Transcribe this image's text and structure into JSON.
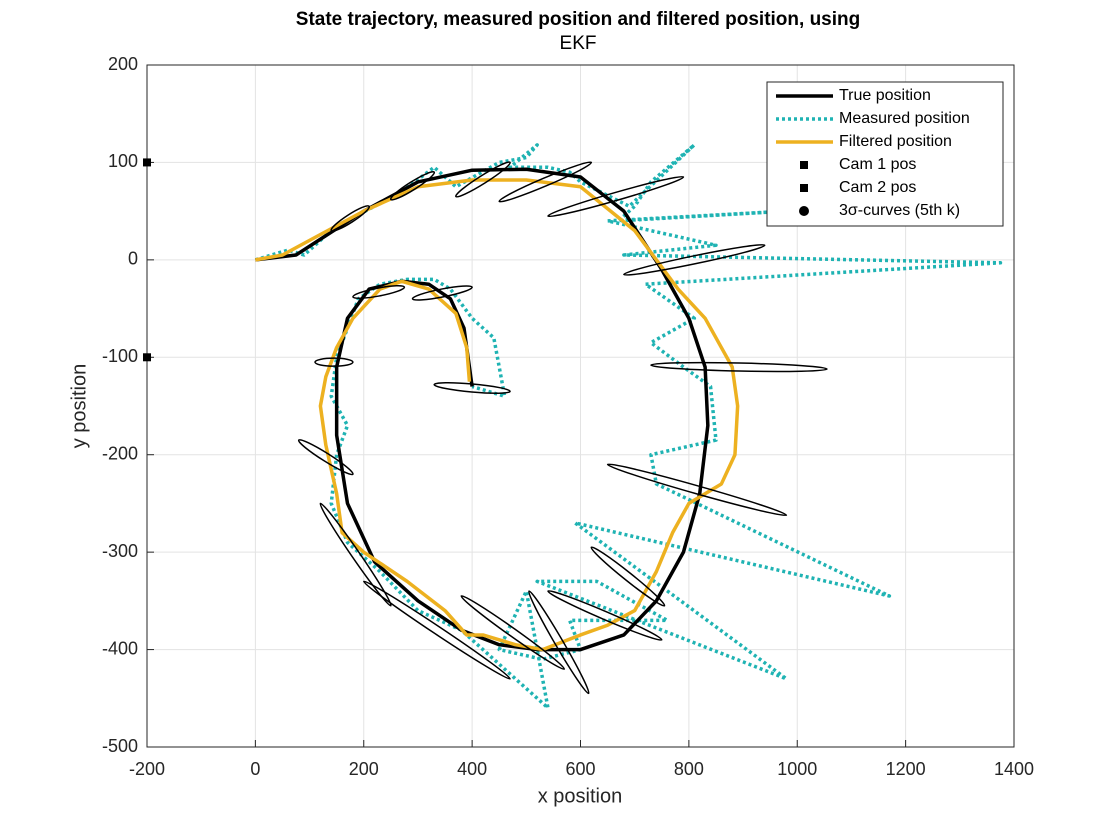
{
  "chart_data": {
    "type": "line",
    "title": "State trajectory, measured position and filtered position, using",
    "subtitle": "EKF",
    "xlabel": "x position",
    "ylabel": "y position",
    "xlim": [
      -200,
      1400
    ],
    "ylim": [
      -500,
      200
    ],
    "xticks": [
      -200,
      0,
      200,
      400,
      600,
      800,
      1000,
      1200,
      1400
    ],
    "yticks": [
      -500,
      -400,
      -300,
      -200,
      -100,
      0,
      100,
      200
    ],
    "grid": true,
    "legend": "northeast",
    "series": [
      {
        "name": "True position",
        "color": "#000000",
        "style": "solid",
        "x": [
          0,
          75,
          200,
          300,
          400,
          500,
          600,
          680,
          750,
          800,
          830,
          835,
          820,
          790,
          740,
          680,
          600,
          520,
          450,
          380,
          300,
          220,
          170,
          150,
          150,
          170,
          210,
          270,
          320,
          360,
          385,
          395,
          400
        ],
        "y": [
          0,
          5,
          50,
          80,
          92,
          93,
          85,
          50,
          -10,
          -60,
          -110,
          -170,
          -240,
          -300,
          -350,
          -385,
          -400,
          -400,
          -395,
          -380,
          -350,
          -310,
          -250,
          -180,
          -110,
          -60,
          -30,
          -22,
          -25,
          -40,
          -70,
          -110,
          -130
        ]
      },
      {
        "name": "Measured position",
        "color": "#1fb3b3",
        "style": "dotted",
        "x": [
          0,
          60,
          90,
          150,
          220,
          270,
          330,
          370,
          450,
          500,
          520,
          470,
          540,
          580,
          600,
          690,
          810,
          730,
          700,
          670,
          980,
          650,
          850,
          680,
          1375,
          720,
          810,
          730,
          790,
          840,
          850,
          730,
          740,
          1170,
          590,
          980,
          520,
          630,
          760,
          580,
          600,
          530,
          450,
          500,
          540,
          380,
          300,
          230,
          170,
          140,
          150,
          170,
          140,
          150,
          170,
          190,
          230,
          280,
          330,
          360,
          400,
          440,
          460,
          400
        ],
        "y": [
          0,
          10,
          5,
          35,
          55,
          70,
          95,
          75,
          100,
          105,
          118,
          95,
          95,
          90,
          80,
          55,
          118,
          80,
          55,
          40,
          50,
          40,
          15,
          5,
          -3,
          -25,
          -60,
          -85,
          -110,
          -130,
          -185,
          -200,
          -230,
          -345,
          -270,
          -430,
          -330,
          -330,
          -370,
          -370,
          -400,
          -410,
          -400,
          -340,
          -460,
          -380,
          -360,
          -320,
          -290,
          -250,
          -200,
          -170,
          -140,
          -100,
          -70,
          -40,
          -25,
          -20,
          -20,
          -30,
          -60,
          -80,
          -140,
          -130
        ]
      },
      {
        "name": "Filtered position",
        "color": "#edb120",
        "style": "solid",
        "x": [
          0,
          50,
          100,
          200,
          300,
          400,
          500,
          600,
          700,
          780,
          830,
          860,
          880,
          890,
          885,
          860,
          800,
          770,
          740,
          700,
          650,
          600,
          530,
          480,
          420,
          390,
          350,
          280,
          200,
          160,
          150,
          130,
          120,
          130,
          150,
          180,
          230,
          270,
          320,
          370,
          390,
          395
        ],
        "y": [
          0,
          5,
          20,
          50,
          75,
          82,
          82,
          75,
          30,
          -30,
          -60,
          -90,
          -110,
          -150,
          -200,
          -230,
          -250,
          -280,
          -320,
          -360,
          -375,
          -385,
          -400,
          -395,
          -385,
          -385,
          -360,
          -330,
          -300,
          -280,
          -240,
          -190,
          -150,
          -120,
          -90,
          -60,
          -30,
          -22,
          -30,
          -55,
          -90,
          -125
        ]
      },
      {
        "name": "Cam 1 pos",
        "color": "#000000",
        "style": "square",
        "x": [
          -200
        ],
        "y": [
          100
        ]
      },
      {
        "name": "Cam 2 pos",
        "color": "#000000",
        "style": "square",
        "x": [
          -200
        ],
        "y": [
          -100
        ]
      },
      {
        "name": "3σ-curves (5th k)",
        "color": "#000000",
        "style": "ellipse",
        "ellipses": [
          {
            "x": [
              140,
              210
            ],
            "y": [
              30,
              55
            ]
          },
          {
            "x": [
              250,
              330
            ],
            "y": [
              62,
              90
            ]
          },
          {
            "x": [
              370,
              470
            ],
            "y": [
              65,
              100
            ]
          },
          {
            "x": [
              450,
              620
            ],
            "y": [
              60,
              100
            ]
          },
          {
            "x": [
              540,
              790
            ],
            "y": [
              45,
              85
            ]
          },
          {
            "x": [
              680,
              940
            ],
            "y": [
              -15,
              15
            ]
          },
          {
            "x": [
              730,
              1055
            ],
            "y": [
              -108,
              -112
            ]
          },
          {
            "x": [
              650,
              980
            ],
            "y": [
              -210,
              -262
            ]
          },
          {
            "x": [
              620,
              755
            ],
            "y": [
              -295,
              -355
            ]
          },
          {
            "x": [
              540,
              750
            ],
            "y": [
              -340,
              -390
            ]
          },
          {
            "x": [
              505,
              615
            ],
            "y": [
              -340,
              -445
            ]
          },
          {
            "x": [
              380,
              570
            ],
            "y": [
              -345,
              -420
            ]
          },
          {
            "x": [
              200,
              470
            ],
            "y": [
              -330,
              -430
            ]
          },
          {
            "x": [
              120,
              250
            ],
            "y": [
              -250,
              -355
            ]
          },
          {
            "x": [
              80,
              180
            ],
            "y": [
              -185,
              -220
            ]
          },
          {
            "x": [
              110,
              180
            ],
            "y": [
              -105,
              -105
            ]
          },
          {
            "x": [
              180,
              275
            ],
            "y": [
              -38,
              -28
            ]
          },
          {
            "x": [
              290,
              400
            ],
            "y": [
              -40,
              -28
            ]
          },
          {
            "x": [
              330,
              470
            ],
            "y": [
              -128,
              -135
            ]
          }
        ]
      }
    ]
  }
}
